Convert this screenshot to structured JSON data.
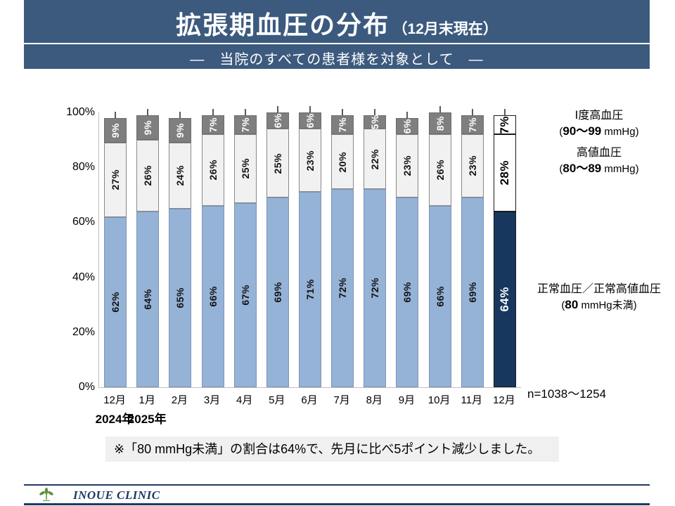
{
  "header": {
    "title": "拡張期血圧の分布",
    "title_suffix": "（12月末現在）",
    "subtitle": "―　当院のすべての患者様を対象として　―"
  },
  "colors": {
    "header_bg": "#3C5A7E",
    "accent_navy": "#1F3864",
    "footnote_bg": "#F0F0F0",
    "logo_green": "#5D8F3C",
    "normal_bar": "#95B3D7",
    "highlight_bar": "#17375E",
    "mid_bar": "#F1F1F1",
    "top_bar": "#7F7F7F"
  },
  "chart_data": {
    "type": "bar",
    "stacked": true,
    "title": "拡張期血圧の分布（12月末現在）",
    "categories": [
      "12月",
      "1月",
      "2月",
      "3月",
      "4月",
      "5月",
      "6月",
      "7月",
      "8月",
      "9月",
      "10月",
      "11月",
      "12月"
    ],
    "series": [
      {
        "name": "正常血圧／正常高値血圧（80 mmHg未満）",
        "values": [
          62,
          64,
          65,
          66,
          67,
          69,
          71,
          72,
          72,
          69,
          66,
          69,
          64
        ],
        "color": "#95B3D7",
        "border": "#7D94B5",
        "text_color": "#111111",
        "highlight_color": "#17375E",
        "highlight_text": "#FFFFFF"
      },
      {
        "name": "高値血圧（80〜89 mmHg）",
        "values": [
          27,
          26,
          24,
          26,
          25,
          25,
          23,
          20,
          22,
          23,
          26,
          23,
          28
        ],
        "color": "#F1F1F1",
        "border": "#898989",
        "text_color": "#111111",
        "highlight_color": "#FFFFFF",
        "highlight_text": "#000000"
      },
      {
        "name": "Ⅰ度高血圧（90〜99 mmHg）",
        "values": [
          9,
          9,
          9,
          7,
          7,
          6,
          6,
          7,
          5,
          6,
          8,
          7,
          7
        ],
        "color": "#7F7F7F",
        "border": "#6A6A6A",
        "text_color": "#FFFFFF",
        "highlight_color": "#FFFFFF",
        "highlight_text": "#000000"
      }
    ],
    "highlight_index": 12,
    "ylim": [
      0,
      100
    ],
    "yticks": [
      {
        "label": "100%",
        "value": 100
      },
      {
        "label": "80%",
        "value": 80
      },
      {
        "label": "60%",
        "value": 60
      },
      {
        "label": "40%",
        "value": 40
      },
      {
        "label": "20%",
        "value": 20
      },
      {
        "label": "0%",
        "value": 0
      }
    ],
    "year_labels": [
      {
        "text": "2024年",
        "category_index": 0
      },
      {
        "text": "2025年",
        "category_index": 1
      }
    ],
    "grid": false,
    "legend_position": "right"
  },
  "right_annotations": {
    "labels": [
      {
        "title": "Ⅰ度高血圧",
        "pre": "(",
        "bold": "90〜99",
        "post": " mmHg)"
      },
      {
        "title": "高値血圧",
        "pre": "(",
        "bold": "80〜89",
        "post": " mmHg)"
      },
      {
        "title": "正常血圧／正常高値血圧",
        "pre": "(",
        "bold": "80",
        "post": " mmHg未満)"
      }
    ],
    "n_label": "n=1038〜1254"
  },
  "footnote": {
    "text": "※「80 mmHg未満」の割合は64%で、先月に比べ5ポイント減少しました。"
  },
  "footer": {
    "clinic_name": "INOUE CLINIC"
  }
}
